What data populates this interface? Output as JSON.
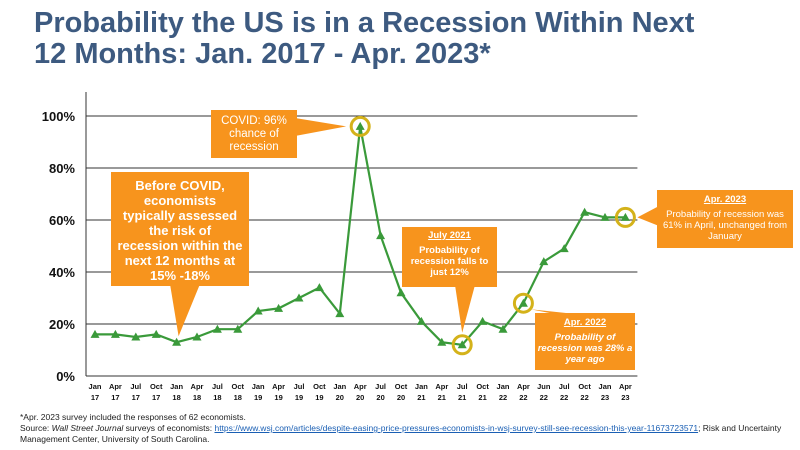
{
  "title": {
    "line1": "Probability the US is in a Recession Within Next",
    "line2": "12 Months: Jan. 2017 - Apr. 2023*"
  },
  "colors": {
    "title": "#3d5a80",
    "line": "#3a9a3a",
    "callout": "#f7941d",
    "highlight_ring": "#d4b21a",
    "grid": "#333333"
  },
  "chart_data": {
    "type": "line",
    "categories": [
      "Jan 17",
      "Apr 17",
      "Jul 17",
      "Oct 17",
      "Jan 18",
      "Apr 18",
      "Jul 18",
      "Oct 18",
      "Jan 19",
      "Apr 19",
      "Jul 19",
      "Oct 19",
      "Jan 20",
      "Apr 20",
      "Jul 20",
      "Oct 20",
      "Jan 21",
      "Apr 21",
      "Jul 21",
      "Oct 21",
      "Jan 22",
      "Apr 22",
      "Jun 22",
      "Jul 22",
      "Oct 22",
      "Jan 23",
      "Apr 23"
    ],
    "tick_labels": [
      {
        "top": "Jan",
        "bottom": "17"
      },
      {
        "top": "Apr",
        "bottom": "17"
      },
      {
        "top": "Jul",
        "bottom": "17"
      },
      {
        "top": "Oct",
        "bottom": "17"
      },
      {
        "top": "Jan",
        "bottom": "18"
      },
      {
        "top": "Apr",
        "bottom": "18"
      },
      {
        "top": "Jul",
        "bottom": "18"
      },
      {
        "top": "Oct",
        "bottom": "18"
      },
      {
        "top": "Jan",
        "bottom": "19"
      },
      {
        "top": "Apr",
        "bottom": "19"
      },
      {
        "top": "Jul",
        "bottom": "19"
      },
      {
        "top": "Oct",
        "bottom": "19"
      },
      {
        "top": "Jan",
        "bottom": "20"
      },
      {
        "top": "Apr",
        "bottom": "20"
      },
      {
        "top": "Jul",
        "bottom": "20"
      },
      {
        "top": "Oct",
        "bottom": "20"
      },
      {
        "top": "Jan",
        "bottom": "21"
      },
      {
        "top": "Apr",
        "bottom": "21"
      },
      {
        "top": "Jul",
        "bottom": "21"
      },
      {
        "top": "Oct",
        "bottom": "21"
      },
      {
        "top": "Jan",
        "bottom": "22"
      },
      {
        "top": "Apr",
        "bottom": "22"
      },
      {
        "top": "Jun",
        "bottom": "22"
      },
      {
        "top": "Jul",
        "bottom": "22"
      },
      {
        "top": "Oct",
        "bottom": "22"
      },
      {
        "top": "Jan",
        "bottom": "23"
      },
      {
        "top": "Apr",
        "bottom": "23"
      }
    ],
    "values": [
      16,
      16,
      15,
      16,
      13,
      15,
      18,
      18,
      25,
      26,
      30,
      34,
      24,
      96,
      54,
      32,
      21,
      13,
      12,
      21,
      18,
      28,
      44,
      49,
      63,
      61,
      61
    ],
    "highlighted_points": [
      "Apr 20",
      "Jul 21",
      "Apr 22",
      "Apr 23"
    ],
    "yticks": [
      0,
      20,
      40,
      60,
      80,
      100
    ],
    "ytick_labels": [
      "0%",
      "20%",
      "40%",
      "60%",
      "80%",
      "100%"
    ],
    "ylim": [
      0,
      100
    ],
    "grid": "horizontal",
    "legend": "none"
  },
  "callouts": {
    "covid": {
      "body": "COVID: 96% chance of recession"
    },
    "before": {
      "body": "Before COVID, economists typically assessed the risk of recession within the next 12 months at 15% -18%"
    },
    "jul2021": {
      "head": "July 2021",
      "body": "Probability of recession falls to just 12%"
    },
    "apr2022": {
      "head": "Apr. 2022",
      "body": "Probability of recession was 28% a year ago"
    },
    "apr2023": {
      "head": "Apr. 2023",
      "body": "Probability of recession was 61% in April, unchanged from January"
    }
  },
  "footnote": {
    "line1": "*Apr. 2023 survey included the responses of 62 economists.",
    "source_prefix": "Source: ",
    "source_journal": "Wall Street Journal",
    "source_mid": " surveys of economists: ",
    "source_link": "https://www.wsj.com/articles/despite-easing-price-pressures-economists-in-wsj-survey-still-see-recession-this-year-11673723571",
    "source_suffix": ";  Risk and Uncertainty Management Center, University of South Carolina."
  }
}
